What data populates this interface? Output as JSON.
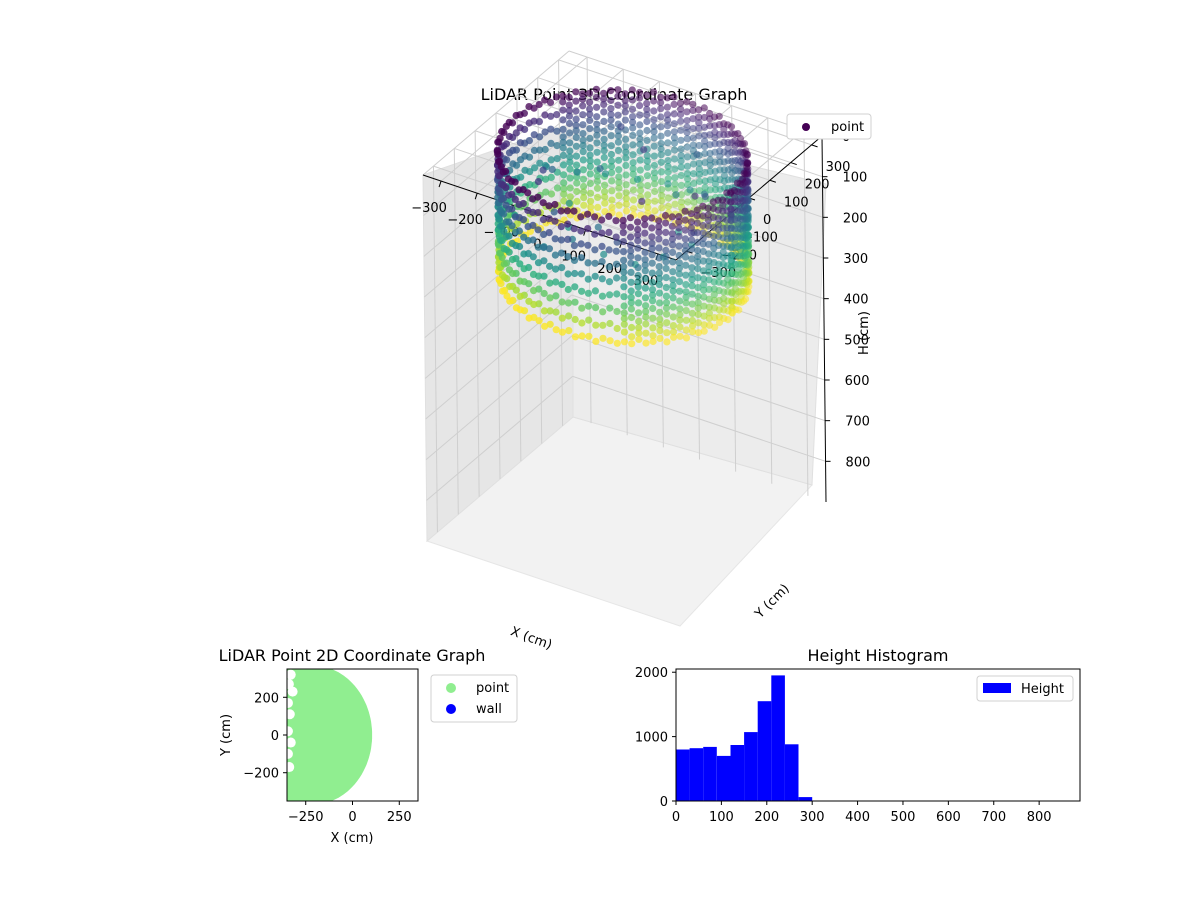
{
  "chart_data": [
    {
      "type": "scatter",
      "projection": "3d",
      "title": "LiDAR Point 3D Coordinate Graph",
      "xlabel": "X (cm)",
      "ylabel": "Y (cm)",
      "zlabel": "H (cm)",
      "xlim": [
        -350,
        350
      ],
      "ylim": [
        -350,
        350
      ],
      "zlim": [
        900,
        0
      ],
      "xticks": [
        "−300",
        "−200",
        "−100",
        "0",
        "100",
        "200",
        "300"
      ],
      "yticks": [
        "−300",
        "−200",
        "−100",
        "0",
        "100",
        "200",
        "300"
      ],
      "zticks": [
        "0",
        "100",
        "200",
        "300",
        "400",
        "500",
        "600",
        "700",
        "800"
      ],
      "zaxis_inverted": true,
      "colormap": "viridis",
      "legend": {
        "position": "top-right",
        "entries": [
          {
            "label": "point",
            "color": "#440154"
          }
        ]
      },
      "series": [
        {
          "name": "point",
          "description": "points on a ring of radius about 300 cm, heights about 0–300 cm, colored by height",
          "radius": 300,
          "height_range": [
            0,
            300
          ],
          "angle_range_deg": [
            0,
            360
          ]
        }
      ]
    },
    {
      "type": "scatter",
      "title": "LiDAR Point 2D Coordinate Graph",
      "xlabel": "X (cm)",
      "ylabel": "Y (cm)",
      "xlim": [
        -350,
        350
      ],
      "ylim": [
        -350,
        350
      ],
      "xticks": [
        "−250",
        "0",
        "250"
      ],
      "yticks": [
        "200",
        "0",
        "−200"
      ],
      "legend": {
        "position": "outside-right",
        "entries": [
          {
            "label": "point",
            "color": "#90ee90"
          },
          {
            "label": "wall",
            "color": "#0000ff"
          }
        ]
      },
      "series": [
        {
          "name": "point",
          "color": "#90ee90",
          "description": "filled region x from about −350 to 105, semicircular right edge"
        },
        {
          "name": "wall",
          "color": "#0000ff",
          "values": []
        }
      ]
    },
    {
      "type": "bar",
      "title": "Height Histogram",
      "xlim": [
        0,
        890
      ],
      "ylim": [
        0,
        2050
      ],
      "xticks": [
        "0",
        "100",
        "200",
        "300",
        "400",
        "500",
        "600",
        "700",
        "800"
      ],
      "yticks": [
        "0",
        "1000",
        "2000"
      ],
      "bin_width": 30,
      "bin_edges_start": 0,
      "values": [
        800,
        820,
        840,
        700,
        870,
        1070,
        1550,
        1950,
        880,
        60
      ],
      "color": "#0000ff",
      "legend": {
        "position": "top-right",
        "entries": [
          {
            "label": "Height",
            "color": "#0000ff"
          }
        ]
      }
    }
  ]
}
